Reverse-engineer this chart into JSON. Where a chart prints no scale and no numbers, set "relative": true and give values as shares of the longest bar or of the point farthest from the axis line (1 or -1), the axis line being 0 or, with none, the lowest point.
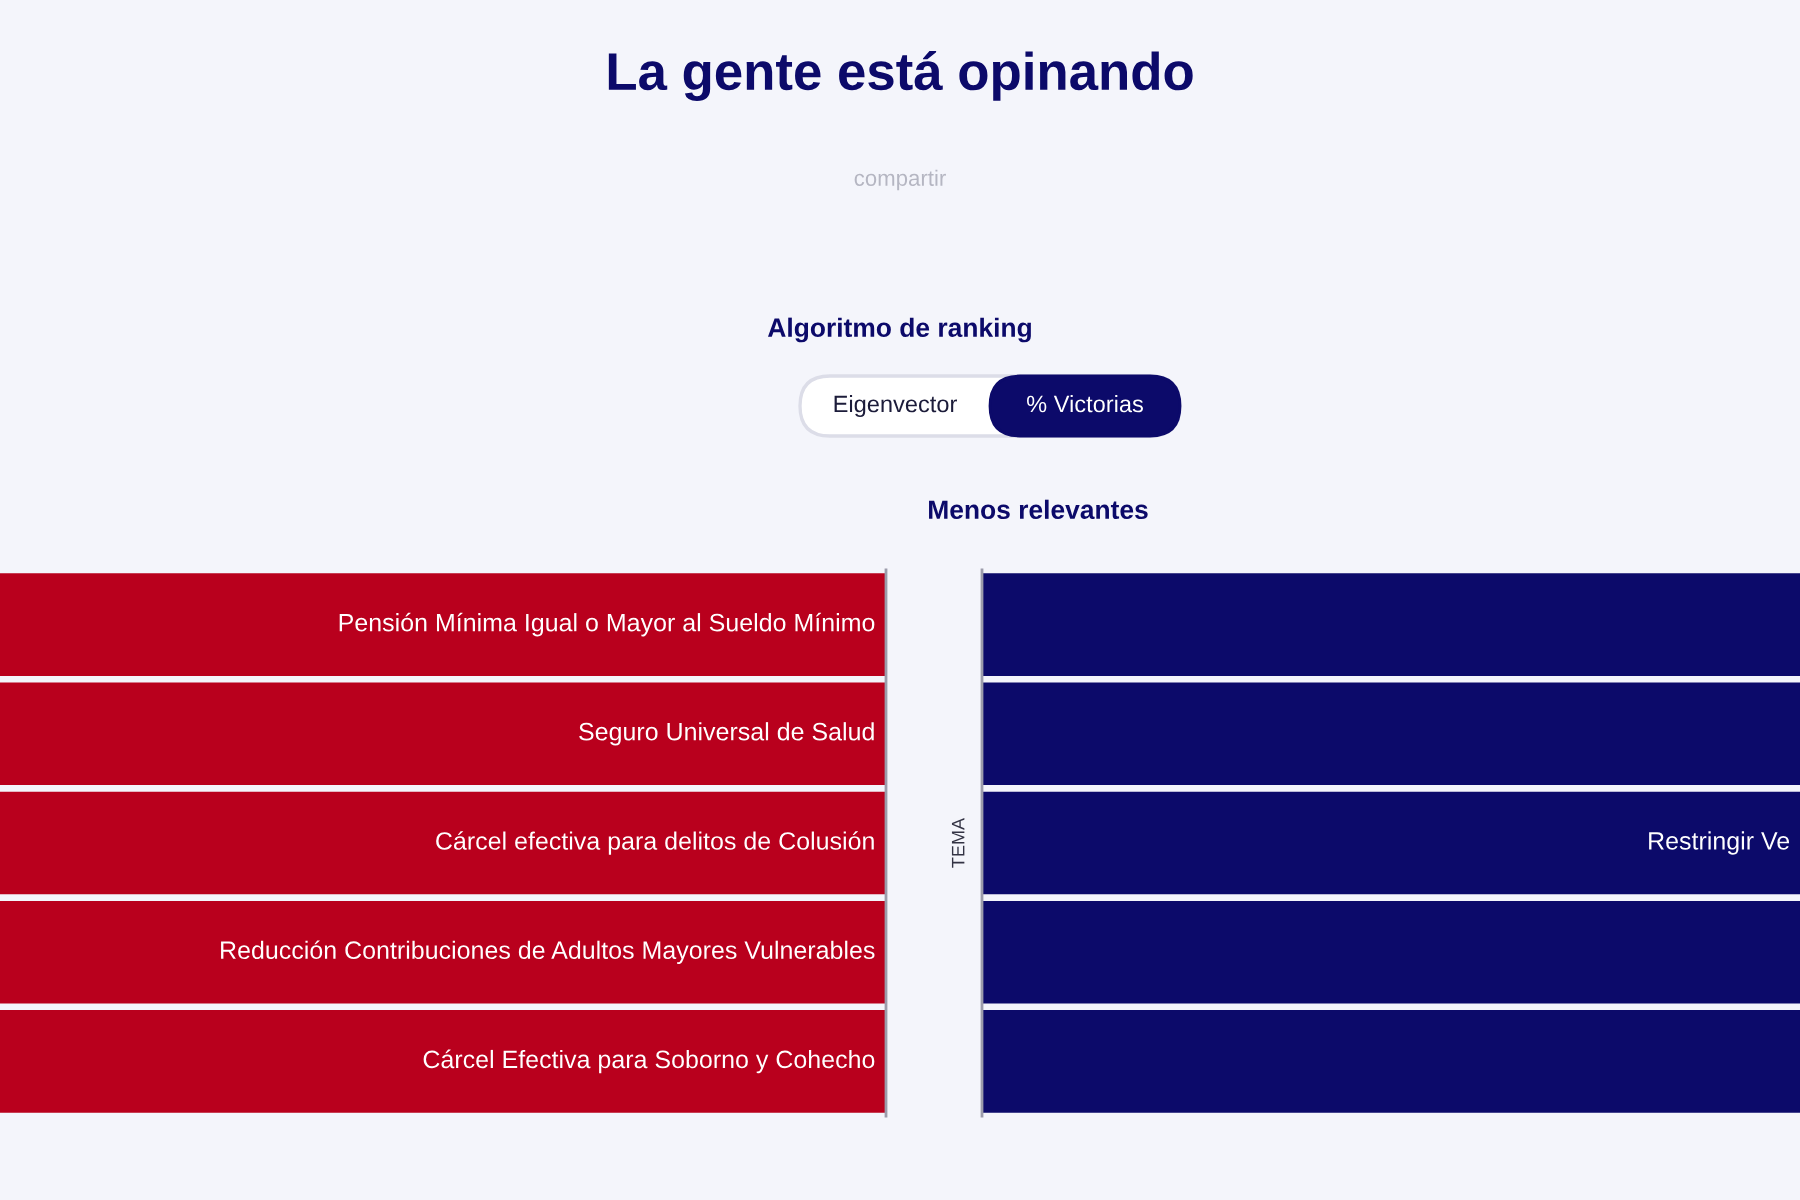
{
  "chart_data": [
    {
      "type": "other",
      "title": "La gente está opinando",
      "annotations": [
        "compartir",
        "Algoritmo de ranking",
        "Eigenvector",
        "% Victorias"
      ]
    },
    {
      "type": "bar",
      "orientation": "horizontal",
      "relative": true,
      "color": "#b9001d",
      "categories": [
        "Pensión Mínima Igual o Mayor al Sueldo Mínimo",
        "Seguro Universal de Salud",
        "Cárcel efectiva para delitos de Colusión",
        "Reducción Contribuciones de Adultos Mayores Vulnerables",
        "Cárcel Efectiva para Soborno y Cohecho"
      ],
      "values": [
        -1,
        -1,
        -1,
        -1,
        -1
      ]
    },
    {
      "type": "bar",
      "orientation": "horizontal",
      "relative": true,
      "color": "#0c0a6a",
      "title": "Menos relevantes",
      "ylabel": "TEMA",
      "categories": [
        null,
        null,
        "Restringir Ve",
        null,
        null
      ],
      "values": [
        1,
        1,
        1,
        1,
        1
      ]
    }
  ]
}
